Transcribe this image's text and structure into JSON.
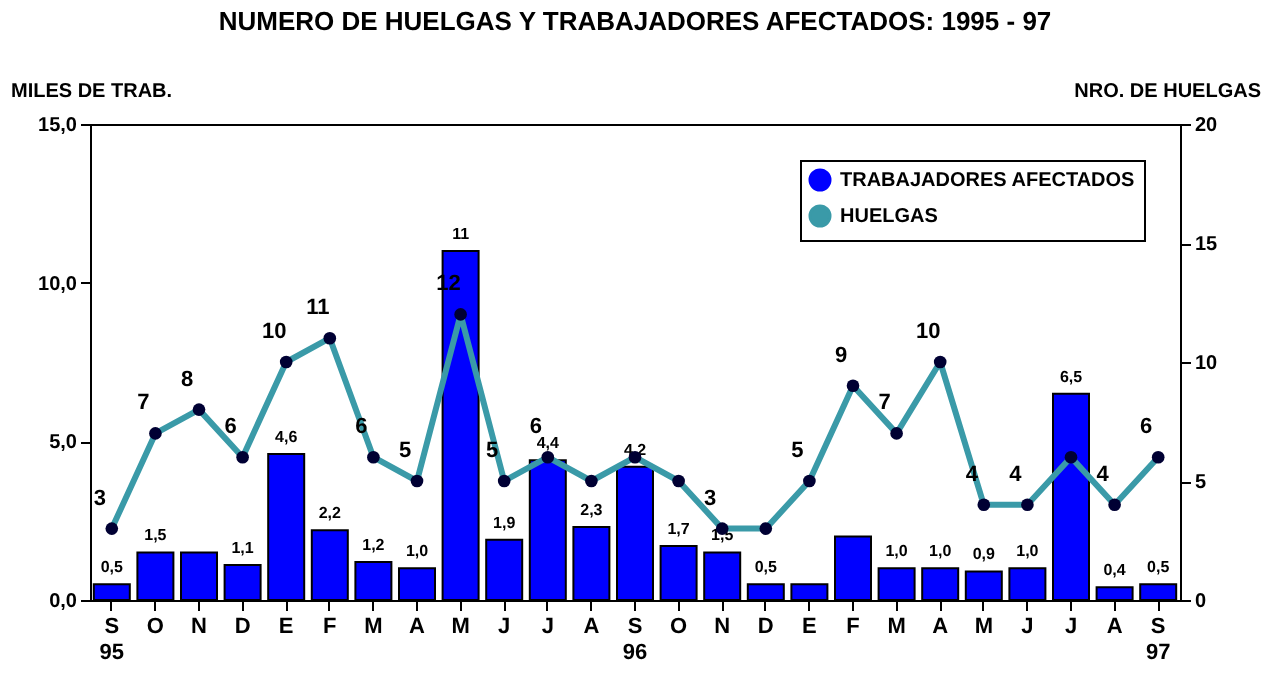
{
  "chart_data": {
    "type": "bar",
    "title": "NUMERO DE HUELGAS Y TRABAJADORES AFECTADOS: 1995 - 97",
    "ylabel": "MILES DE TRAB.",
    "y2label": "NRO. DE HUELGAS",
    "categories": [
      "S 95",
      "O",
      "N",
      "D",
      "E",
      "F",
      "M",
      "A",
      "M",
      "J",
      "J",
      "A",
      "S 96",
      "O",
      "N",
      "D",
      "E",
      "F",
      "M",
      "A",
      "M",
      "J",
      "J",
      "A",
      "S 97"
    ],
    "series": [
      {
        "name": "TRABAJADORES AFECTADOS",
        "color": "#0000ff",
        "values": [
          0.5,
          1.5,
          1.5,
          1.1,
          4.6,
          2.2,
          1.2,
          1.0,
          11.0,
          1.9,
          4.4,
          2.3,
          4.2,
          1.7,
          1.5,
          0.5,
          0.5,
          2.0,
          1.0,
          1.0,
          0.9,
          1.0,
          6.5,
          0.4,
          0.5
        ],
        "value_labels": [
          "0,5",
          "1,5",
          null,
          "1,1",
          "4,6",
          "2,2",
          "1,2",
          "1,0",
          "11",
          "1,9",
          "4,4",
          "2,3",
          "4,2",
          "1,7",
          "1,5",
          "0,5",
          null,
          null,
          "1,0",
          "1,0",
          "0,9",
          "1,0",
          "6,5",
          "0,4",
          "0,5"
        ]
      },
      {
        "name": "HUELGAS",
        "type": "line",
        "axis": "y2",
        "color": "#3a9aa8",
        "marker": "circle",
        "line_style": "solid",
        "values": [
          3,
          7,
          8,
          6,
          10,
          11,
          6,
          5,
          12,
          5,
          6,
          5,
          6,
          5,
          3,
          3,
          5,
          9,
          7,
          10,
          4,
          4,
          6,
          4,
          6
        ],
        "value_labels": [
          "3",
          "7",
          "8",
          "6",
          "10",
          "11",
          "6",
          "5",
          "12",
          "5",
          "6",
          null,
          null,
          null,
          "3",
          null,
          "5",
          "9",
          "7",
          "10",
          "4",
          "4",
          null,
          "4",
          "6"
        ]
      }
    ],
    "ylim": [
      0,
      15
    ],
    "yticks": [
      {
        "value": 0,
        "label": "0,0"
      },
      {
        "value": 5,
        "label": "5,0"
      },
      {
        "value": 10,
        "label": "10,0"
      },
      {
        "value": 15,
        "label": "15,0"
      }
    ],
    "y2lim": [
      0,
      20
    ],
    "y2ticks": [
      0,
      5,
      10,
      15,
      20
    ],
    "grid": false,
    "legend": "top right"
  }
}
